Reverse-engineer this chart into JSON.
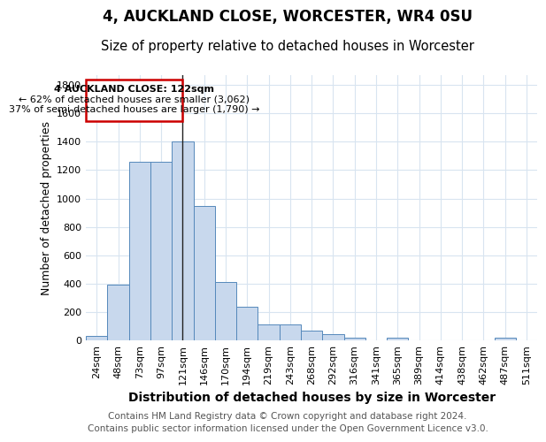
{
  "title1": "4, AUCKLAND CLOSE, WORCESTER, WR4 0SU",
  "title2": "Size of property relative to detached houses in Worcester",
  "xlabel": "Distribution of detached houses by size in Worcester",
  "ylabel": "Number of detached properties",
  "footnote": "Contains HM Land Registry data © Crown copyright and database right 2024.\nContains public sector information licensed under the Open Government Licence v3.0.",
  "categories": [
    "24sqm",
    "48sqm",
    "73sqm",
    "97sqm",
    "121sqm",
    "146sqm",
    "170sqm",
    "194sqm",
    "219sqm",
    "243sqm",
    "268sqm",
    "292sqm",
    "316sqm",
    "341sqm",
    "365sqm",
    "389sqm",
    "414sqm",
    "438sqm",
    "462sqm",
    "487sqm",
    "511sqm"
  ],
  "values": [
    30,
    390,
    1260,
    1260,
    1400,
    950,
    410,
    235,
    115,
    115,
    70,
    45,
    20,
    0,
    20,
    0,
    0,
    0,
    0,
    20,
    0
  ],
  "bar_color": "#c8d8ed",
  "bar_edge_color": "#5588bb",
  "vline_index": 4,
  "vline_color": "#222222",
  "annotation_title": "4 AUCKLAND CLOSE: 122sqm",
  "annotation_line1": "← 62% of detached houses are smaller (3,062)",
  "annotation_line2": "37% of semi-detached houses are larger (1,790) →",
  "annotation_box_color": "#ffffff",
  "annotation_border_color": "#cc0000",
  "ylim": [
    0,
    1870
  ],
  "yticks": [
    0,
    200,
    400,
    600,
    800,
    1000,
    1200,
    1400,
    1600,
    1800
  ],
  "background_color": "#ffffff",
  "grid_color": "#d8e4f0",
  "title1_fontsize": 12,
  "title2_fontsize": 10.5,
  "ylabel_fontsize": 9,
  "xlabel_fontsize": 10,
  "footnote_fontsize": 7.5,
  "tick_fontsize": 8
}
